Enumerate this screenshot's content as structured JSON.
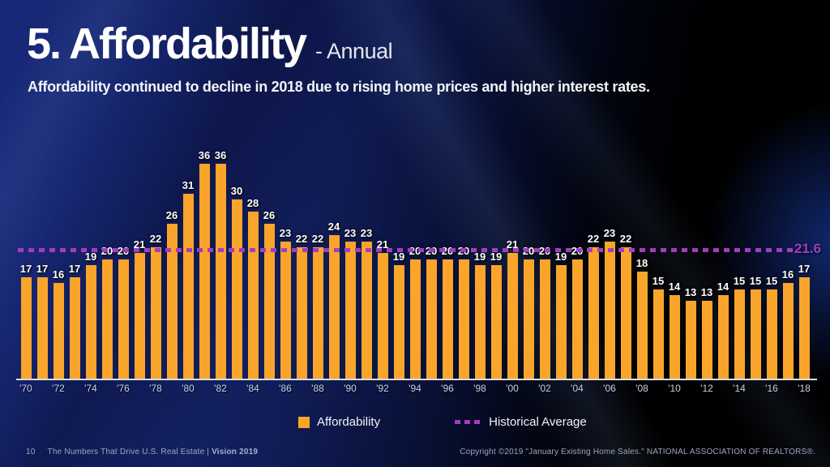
{
  "slide": {
    "title": "5. Affordability",
    "title_suffix": "- Annual",
    "subtitle": "Affordability continued to decline in 2018 due to rising home prices and higher interest rates.",
    "footer": {
      "page_number": "10",
      "left_text": "The Numbers That Drive U.S. Real Estate | ",
      "left_text_bold": "Vision 2019",
      "right_text": "Copyright ©2019 \"January Existing Home Sales.\" NATIONAL ASSOCIATION OF REALTORS®."
    }
  },
  "chart_data": {
    "type": "bar",
    "title": "Affordability - Annual",
    "categories": [
      "'70",
      "'71",
      "'72",
      "'73",
      "'74",
      "'75",
      "'76",
      "'77",
      "'78",
      "'79",
      "'80",
      "'81",
      "'82",
      "'83",
      "'84",
      "'85",
      "'86",
      "'87",
      "'88",
      "'89",
      "'90",
      "'91",
      "'92",
      "'93",
      "'94",
      "'95",
      "'96",
      "'97",
      "'98",
      "'99",
      "'00",
      "'01",
      "'02",
      "'03",
      "'04",
      "'05",
      "'06",
      "'07",
      "'08",
      "'09",
      "'10",
      "'11",
      "'12",
      "'13",
      "'14",
      "'15",
      "'16",
      "'17",
      "'18"
    ],
    "values": [
      17,
      17,
      16,
      17,
      19,
      20,
      20,
      21,
      22,
      26,
      31,
      36,
      36,
      30,
      28,
      26,
      23,
      22,
      22,
      24,
      23,
      23,
      21,
      19,
      20,
      20,
      20,
      20,
      19,
      19,
      21,
      20,
      20,
      19,
      20,
      22,
      23,
      22,
      18,
      15,
      14,
      13,
      13,
      14,
      15,
      15,
      15,
      16,
      17
    ],
    "x_tick_step": 2,
    "ylim": [
      0,
      38
    ],
    "grid": false,
    "historical_average": 21.6,
    "historical_average_label": "21.6",
    "bar_color": "#F9A52B",
    "average_line_color": "#A43CC0",
    "legend": [
      {
        "label": "Affordability",
        "type": "bar",
        "color": "#F9A52B"
      },
      {
        "label": "Historical Average",
        "type": "dashed-line",
        "color": "#A43CC0"
      }
    ],
    "legend_position": "bottom"
  }
}
